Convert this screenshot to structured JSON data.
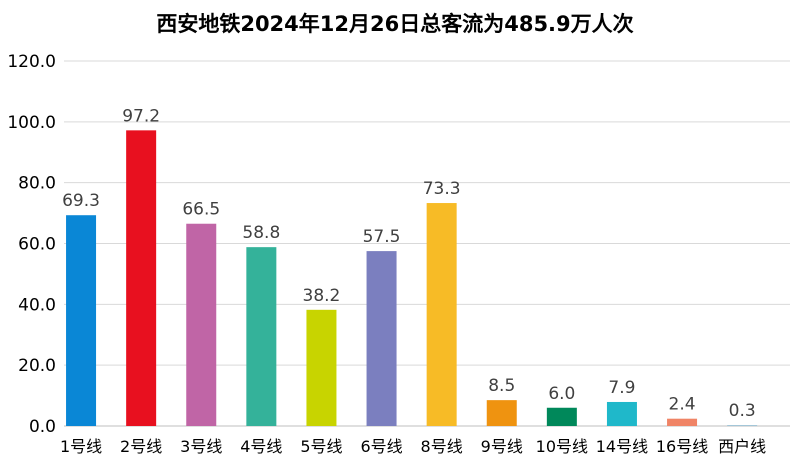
{
  "chart_data": {
    "type": "bar",
    "title": "西安地铁2024年12月26日总客流为485.9万人次",
    "categories": [
      "1号线",
      "2号线",
      "3号线",
      "4号线",
      "5号线",
      "6号线",
      "8号线",
      "9号线",
      "10号线",
      "14号线",
      "16号线",
      "西户线"
    ],
    "values": [
      69.3,
      97.2,
      66.5,
      58.8,
      38.2,
      57.5,
      73.3,
      8.5,
      6.0,
      7.9,
      2.4,
      0.3
    ],
    "value_labels": [
      "69.3",
      "97.2",
      "66.5",
      "58.8",
      "38.2",
      "57.5",
      "73.3",
      "8.5",
      "6.0",
      "7.9",
      "2.4",
      "0.3"
    ],
    "colors": [
      "#0a87d6",
      "#e8101f",
      "#c065a6",
      "#34b29a",
      "#c8d400",
      "#7b7fbf",
      "#f7bb26",
      "#ef9310",
      "#00885a",
      "#1fb8ca",
      "#f08466",
      "#a3c6d8"
    ],
    "ylim": [
      0,
      120
    ],
    "yticks": [
      0,
      20,
      40,
      60,
      80,
      100,
      120
    ],
    "ytick_labels": [
      "0.0",
      "20.0",
      "40.0",
      "60.0",
      "80.0",
      "100.0",
      "120.0"
    ],
    "grid": true,
    "legend": "none",
    "xlabel": "",
    "ylabel": ""
  }
}
